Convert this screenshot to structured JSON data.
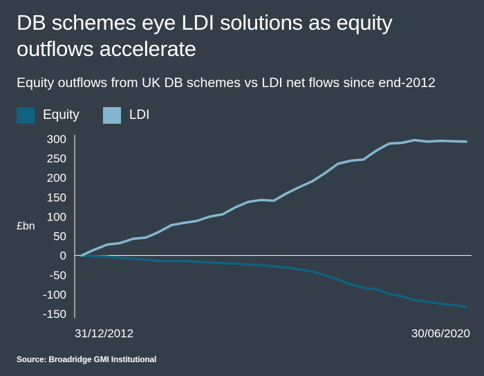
{
  "header": {
    "title": "DB schemes eye LDI solutions as equity outflows accelerate",
    "subtitle": "Equity outflows from UK DB schemes vs LDI net flows since end-2012"
  },
  "footer": {
    "source": "Source: Broadridge GMI Institutional"
  },
  "colors": {
    "background": "#333e48",
    "equity": "#11627f",
    "ldi": "#86b6cf",
    "axis": "#ffffff"
  },
  "chart_data": {
    "type": "line",
    "title": "DB schemes eye LDI solutions as equity outflows accelerate",
    "subtitle": "Equity outflows from UK DB schemes vs LDI net flows since end-2012",
    "ylabel": "£bn",
    "xlabel": "",
    "ylim": [
      -150,
      300
    ],
    "yticks": [
      300,
      250,
      200,
      150,
      100,
      50,
      0,
      -50,
      -100,
      -150
    ],
    "x_tick_labels": [
      "31/12/2012",
      "30/06/2020"
    ],
    "x_range": [
      "31/12/2012",
      "30/06/2020"
    ],
    "grid": false,
    "legend_position": "top-left",
    "frequency": "quarterly",
    "x": [
      "31/12/2012",
      "31/03/2013",
      "30/06/2013",
      "30/09/2013",
      "31/12/2013",
      "31/03/2014",
      "30/06/2014",
      "30/09/2014",
      "31/12/2014",
      "31/03/2015",
      "30/06/2015",
      "30/09/2015",
      "31/12/2015",
      "31/03/2016",
      "30/06/2016",
      "30/09/2016",
      "31/12/2016",
      "31/03/2017",
      "30/06/2017",
      "30/09/2017",
      "31/12/2017",
      "31/03/2018",
      "30/06/2018",
      "30/09/2018",
      "31/12/2018",
      "31/03/2019",
      "30/06/2019",
      "30/09/2019",
      "31/12/2019",
      "31/03/2020",
      "30/06/2020"
    ],
    "series": [
      {
        "name": "Equity",
        "color": "#11627f",
        "values": [
          0,
          -2,
          -3,
          -6,
          -8,
          -11,
          -14,
          -14,
          -14,
          -16,
          -18,
          -20,
          -21,
          -23,
          -25,
          -28,
          -31,
          -36,
          -41,
          -51,
          -62,
          -74,
          -83,
          -87,
          -99,
          -105,
          -115,
          -119,
          -124,
          -127,
          -133
        ]
      },
      {
        "name": "LDI",
        "color": "#86b6cf",
        "values": [
          0,
          15,
          28,
          32,
          43,
          46,
          60,
          78,
          84,
          89,
          100,
          106,
          124,
          138,
          143,
          141,
          160,
          176,
          191,
          212,
          236,
          244,
          247,
          270,
          288,
          290,
          297,
          293,
          295,
          294,
          293
        ]
      }
    ]
  }
}
